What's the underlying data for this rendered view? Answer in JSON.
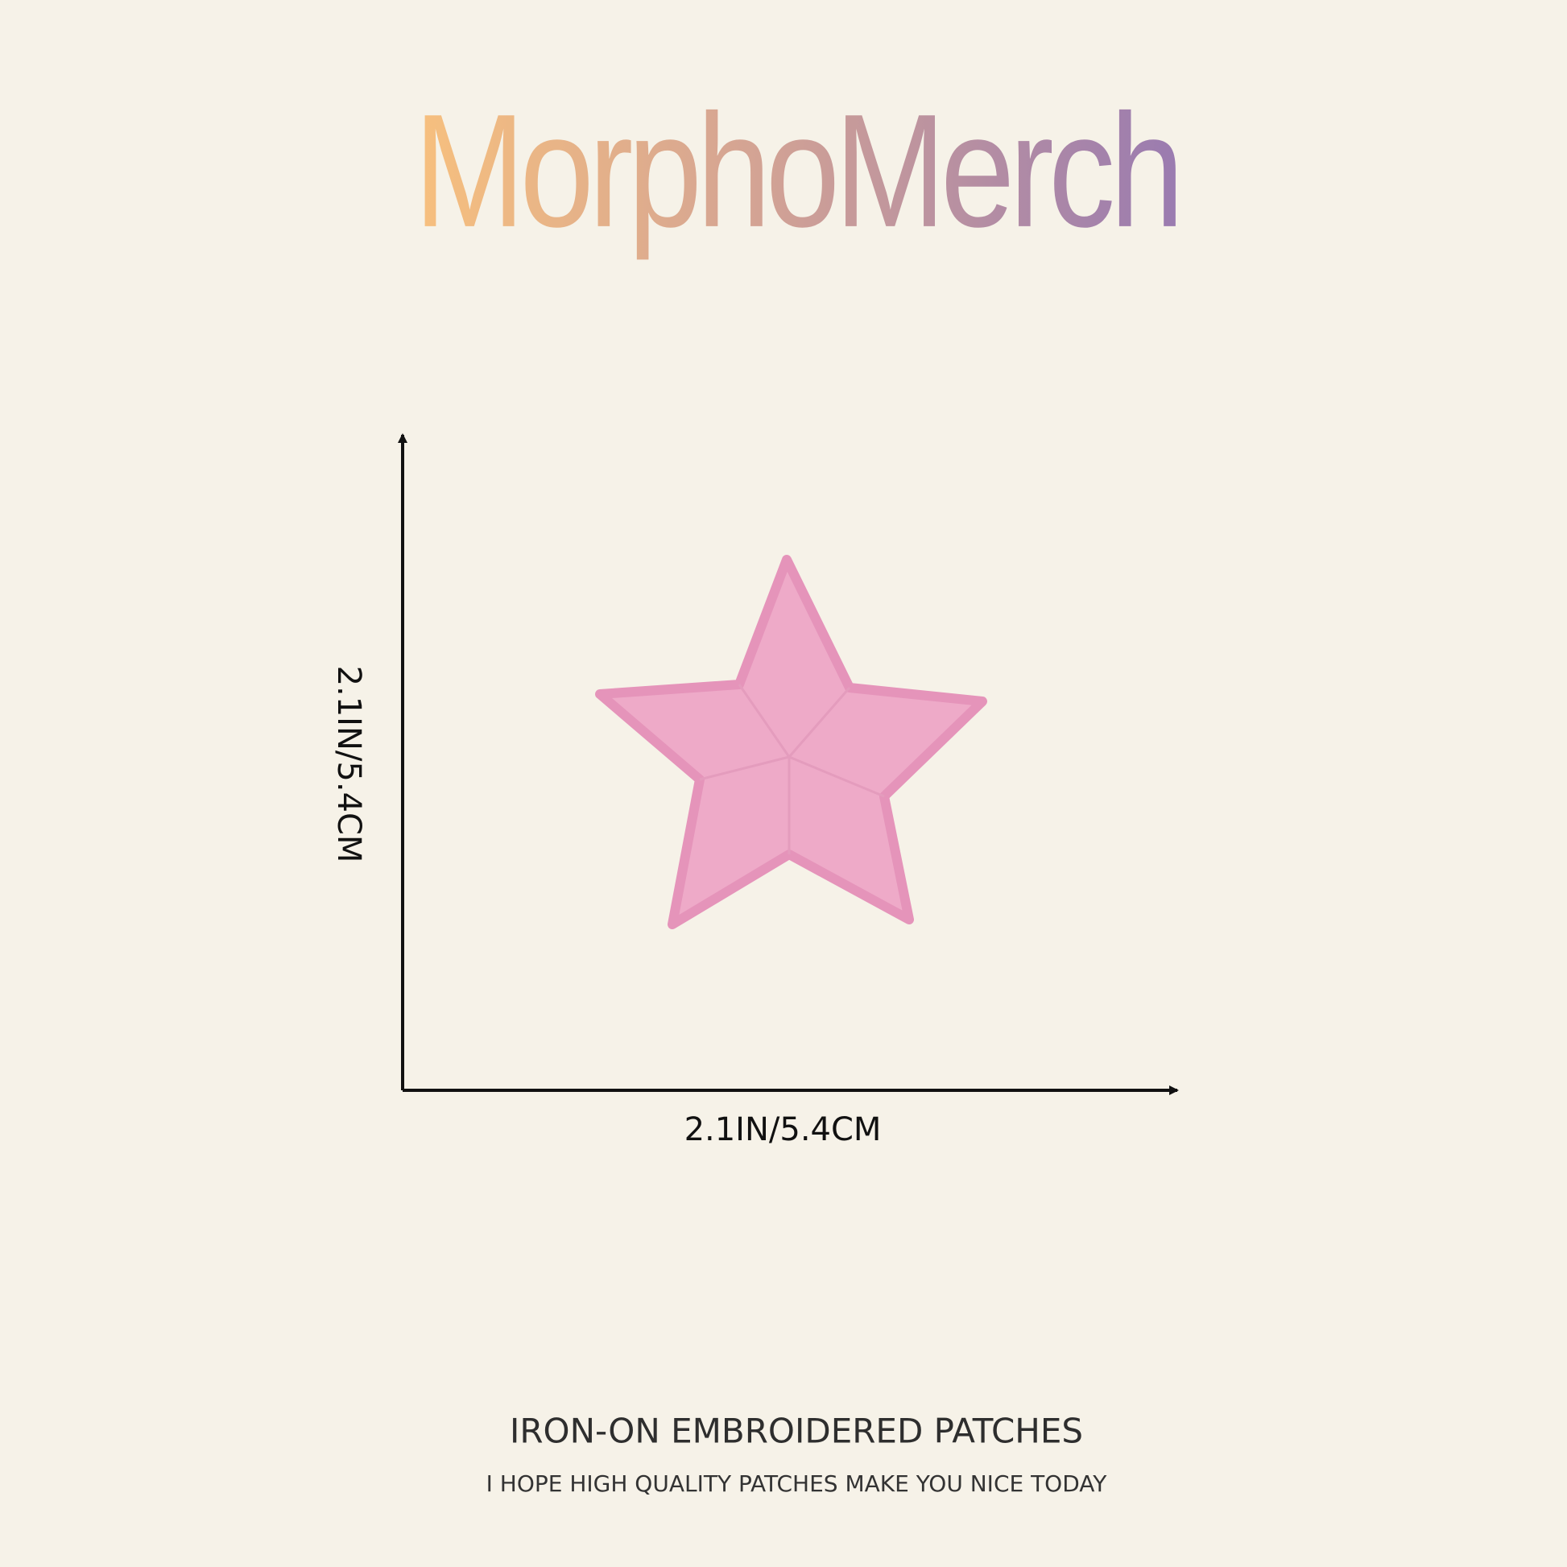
{
  "brand": "MorphoMerch",
  "dimensions": {
    "height": "2.1IN/5.4CM",
    "width": "2.1IN/5.4CM"
  },
  "footer": {
    "title": "IRON-ON EMBROIDERED PATCHES",
    "subtitle": "I HOPE HIGH QUALITY PATCHES MAKE YOU NICE TODAY"
  }
}
